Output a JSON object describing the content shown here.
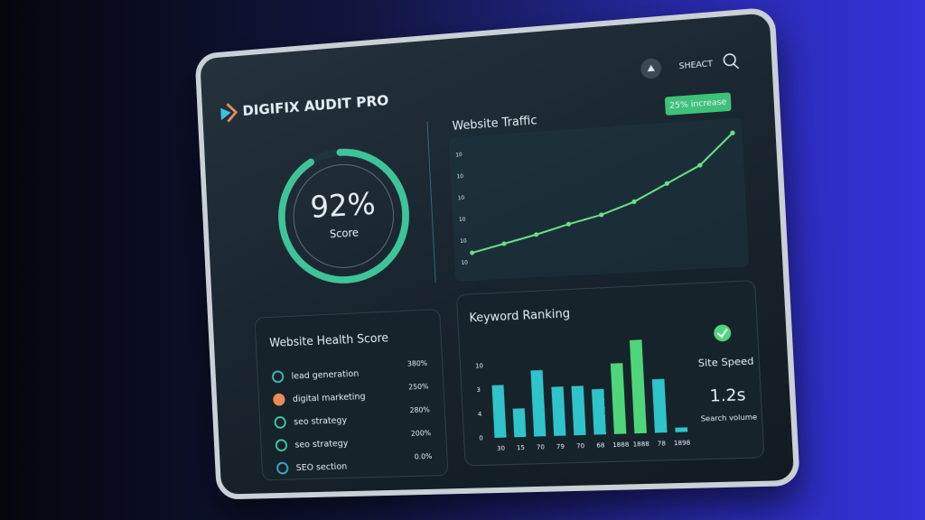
{
  "header": {
    "brand": "DIGIFIX AUDIT PRO",
    "search_label": "SHEACT"
  },
  "score": {
    "value": 92,
    "label": "92%",
    "caption": "Score"
  },
  "traffic": {
    "type": "line",
    "title": "Website Traffic",
    "badge": "25% increase",
    "y_labels": [
      "10",
      "10",
      "10",
      "10",
      "10",
      "10"
    ],
    "values": [
      8,
      14,
      20,
      27,
      33,
      42,
      55,
      68,
      92
    ],
    "ylim": [
      0,
      100
    ],
    "color": "#6ee08a"
  },
  "health": {
    "title": "Website Health Score",
    "items": [
      {
        "label": "lead generation",
        "value": "380%",
        "marker_color": "#3fb6b8"
      },
      {
        "label": "digital marketing",
        "value": "250%",
        "marker_color": "#f08a5a"
      },
      {
        "label": "seo strategy",
        "value": "280%",
        "marker_color": "#3fc49a"
      },
      {
        "label": "seo strategy",
        "value": "200%",
        "marker_color": "#3fc49a"
      },
      {
        "label": "SEO section",
        "value": "0.0%",
        "marker_color": "#3fa6c4"
      }
    ]
  },
  "keywords": {
    "type": "bar",
    "title": "Keyword Ranking",
    "y_labels": [
      "10",
      "3",
      "4",
      "0"
    ],
    "categories": [
      "30",
      "15",
      "70",
      "79",
      "70",
      "68",
      "1888",
      "1888",
      "78",
      "1898"
    ],
    "values": [
      8.3,
      4.5,
      10.4,
      7.7,
      7.7,
      7.1,
      11,
      14.5,
      8.3,
      0.7
    ],
    "colors": [
      "#2ec4c9",
      "#2ec4c9",
      "#2ec4c9",
      "#2ec4c9",
      "#2ec4c9",
      "#2ec4c9",
      "#4fd67a",
      "#4fd67a",
      "#2ec4c9",
      "#2ec4c9"
    ],
    "ylim": [
      0,
      15
    ]
  },
  "site_speed": {
    "title": "Site Speed",
    "value": "1.2s",
    "caption": "Search volume"
  }
}
